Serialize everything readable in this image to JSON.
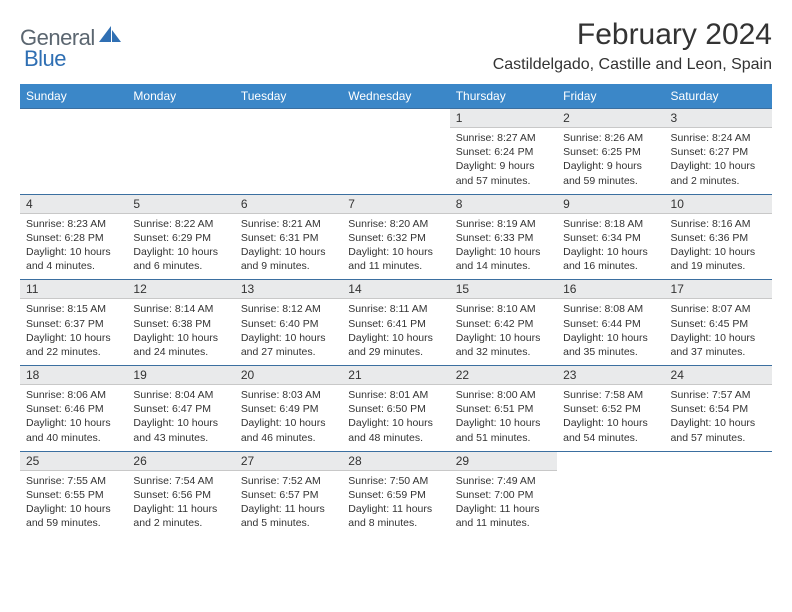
{
  "brand": {
    "word1": "General",
    "word2": "Blue"
  },
  "title": "February 2024",
  "location": "Castildelgado, Castille and Leon, Spain",
  "colors": {
    "header_bg": "#3b87c8",
    "header_text": "#ffffff",
    "daynum_bg": "#e9eaeb",
    "row_border": "#3b6fa0",
    "logo_gray": "#5b6670",
    "logo_blue": "#2f6fb3"
  },
  "weekdays": [
    "Sunday",
    "Monday",
    "Tuesday",
    "Wednesday",
    "Thursday",
    "Friday",
    "Saturday"
  ],
  "weeks": [
    [
      null,
      null,
      null,
      null,
      {
        "n": "1",
        "sr": "Sunrise: 8:27 AM",
        "ss": "Sunset: 6:24 PM",
        "dl": "Daylight: 9 hours and 57 minutes."
      },
      {
        "n": "2",
        "sr": "Sunrise: 8:26 AM",
        "ss": "Sunset: 6:25 PM",
        "dl": "Daylight: 9 hours and 59 minutes."
      },
      {
        "n": "3",
        "sr": "Sunrise: 8:24 AM",
        "ss": "Sunset: 6:27 PM",
        "dl": "Daylight: 10 hours and 2 minutes."
      }
    ],
    [
      {
        "n": "4",
        "sr": "Sunrise: 8:23 AM",
        "ss": "Sunset: 6:28 PM",
        "dl": "Daylight: 10 hours and 4 minutes."
      },
      {
        "n": "5",
        "sr": "Sunrise: 8:22 AM",
        "ss": "Sunset: 6:29 PM",
        "dl": "Daylight: 10 hours and 6 minutes."
      },
      {
        "n": "6",
        "sr": "Sunrise: 8:21 AM",
        "ss": "Sunset: 6:31 PM",
        "dl": "Daylight: 10 hours and 9 minutes."
      },
      {
        "n": "7",
        "sr": "Sunrise: 8:20 AM",
        "ss": "Sunset: 6:32 PM",
        "dl": "Daylight: 10 hours and 11 minutes."
      },
      {
        "n": "8",
        "sr": "Sunrise: 8:19 AM",
        "ss": "Sunset: 6:33 PM",
        "dl": "Daylight: 10 hours and 14 minutes."
      },
      {
        "n": "9",
        "sr": "Sunrise: 8:18 AM",
        "ss": "Sunset: 6:34 PM",
        "dl": "Daylight: 10 hours and 16 minutes."
      },
      {
        "n": "10",
        "sr": "Sunrise: 8:16 AM",
        "ss": "Sunset: 6:36 PM",
        "dl": "Daylight: 10 hours and 19 minutes."
      }
    ],
    [
      {
        "n": "11",
        "sr": "Sunrise: 8:15 AM",
        "ss": "Sunset: 6:37 PM",
        "dl": "Daylight: 10 hours and 22 minutes."
      },
      {
        "n": "12",
        "sr": "Sunrise: 8:14 AM",
        "ss": "Sunset: 6:38 PM",
        "dl": "Daylight: 10 hours and 24 minutes."
      },
      {
        "n": "13",
        "sr": "Sunrise: 8:12 AM",
        "ss": "Sunset: 6:40 PM",
        "dl": "Daylight: 10 hours and 27 minutes."
      },
      {
        "n": "14",
        "sr": "Sunrise: 8:11 AM",
        "ss": "Sunset: 6:41 PM",
        "dl": "Daylight: 10 hours and 29 minutes."
      },
      {
        "n": "15",
        "sr": "Sunrise: 8:10 AM",
        "ss": "Sunset: 6:42 PM",
        "dl": "Daylight: 10 hours and 32 minutes."
      },
      {
        "n": "16",
        "sr": "Sunrise: 8:08 AM",
        "ss": "Sunset: 6:44 PM",
        "dl": "Daylight: 10 hours and 35 minutes."
      },
      {
        "n": "17",
        "sr": "Sunrise: 8:07 AM",
        "ss": "Sunset: 6:45 PM",
        "dl": "Daylight: 10 hours and 37 minutes."
      }
    ],
    [
      {
        "n": "18",
        "sr": "Sunrise: 8:06 AM",
        "ss": "Sunset: 6:46 PM",
        "dl": "Daylight: 10 hours and 40 minutes."
      },
      {
        "n": "19",
        "sr": "Sunrise: 8:04 AM",
        "ss": "Sunset: 6:47 PM",
        "dl": "Daylight: 10 hours and 43 minutes."
      },
      {
        "n": "20",
        "sr": "Sunrise: 8:03 AM",
        "ss": "Sunset: 6:49 PM",
        "dl": "Daylight: 10 hours and 46 minutes."
      },
      {
        "n": "21",
        "sr": "Sunrise: 8:01 AM",
        "ss": "Sunset: 6:50 PM",
        "dl": "Daylight: 10 hours and 48 minutes."
      },
      {
        "n": "22",
        "sr": "Sunrise: 8:00 AM",
        "ss": "Sunset: 6:51 PM",
        "dl": "Daylight: 10 hours and 51 minutes."
      },
      {
        "n": "23",
        "sr": "Sunrise: 7:58 AM",
        "ss": "Sunset: 6:52 PM",
        "dl": "Daylight: 10 hours and 54 minutes."
      },
      {
        "n": "24",
        "sr": "Sunrise: 7:57 AM",
        "ss": "Sunset: 6:54 PM",
        "dl": "Daylight: 10 hours and 57 minutes."
      }
    ],
    [
      {
        "n": "25",
        "sr": "Sunrise: 7:55 AM",
        "ss": "Sunset: 6:55 PM",
        "dl": "Daylight: 10 hours and 59 minutes."
      },
      {
        "n": "26",
        "sr": "Sunrise: 7:54 AM",
        "ss": "Sunset: 6:56 PM",
        "dl": "Daylight: 11 hours and 2 minutes."
      },
      {
        "n": "27",
        "sr": "Sunrise: 7:52 AM",
        "ss": "Sunset: 6:57 PM",
        "dl": "Daylight: 11 hours and 5 minutes."
      },
      {
        "n": "28",
        "sr": "Sunrise: 7:50 AM",
        "ss": "Sunset: 6:59 PM",
        "dl": "Daylight: 11 hours and 8 minutes."
      },
      {
        "n": "29",
        "sr": "Sunrise: 7:49 AM",
        "ss": "Sunset: 7:00 PM",
        "dl": "Daylight: 11 hours and 11 minutes."
      },
      null,
      null
    ]
  ]
}
